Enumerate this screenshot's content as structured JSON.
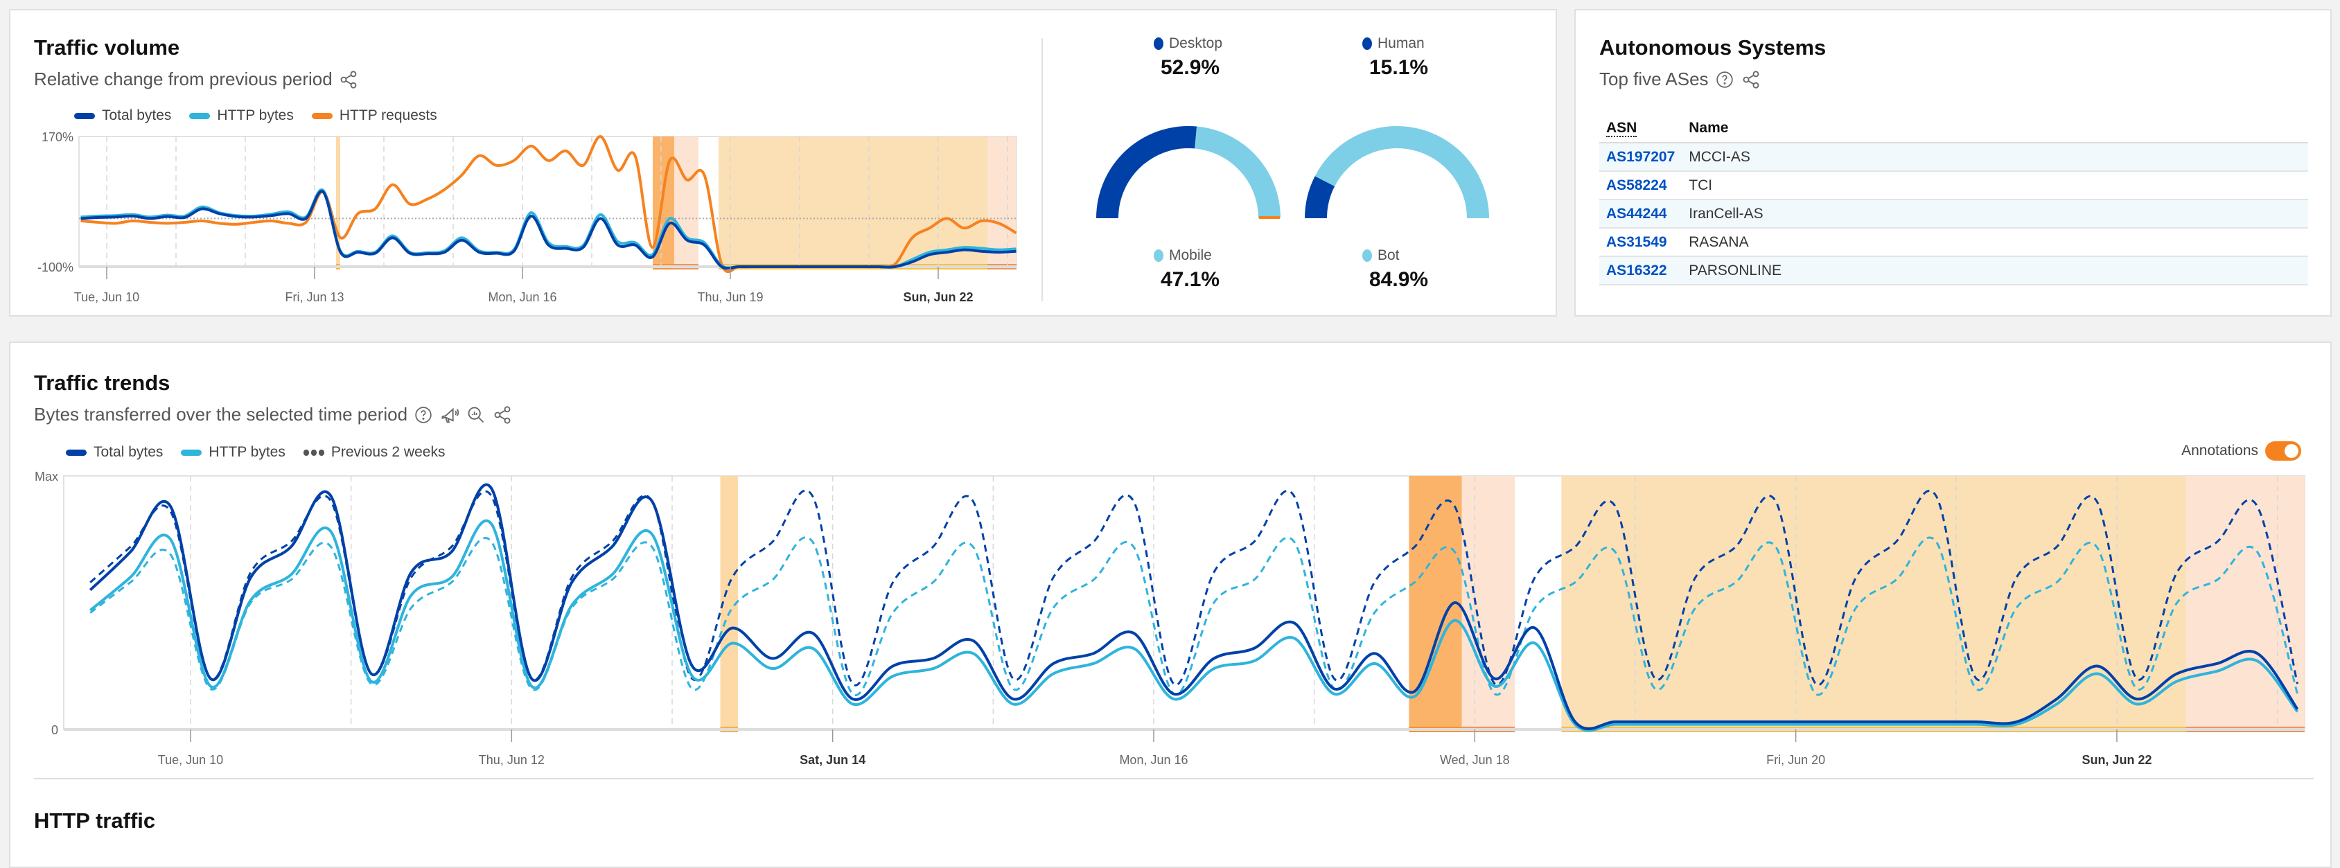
{
  "colors": {
    "total_bytes": "#0041a8",
    "http_bytes": "#2fb4dc",
    "http_requests": "#f6821f",
    "gauge_dark": "#0041a8",
    "gauge_light": "#7ccfe6",
    "accent": "#f6821f",
    "link": "#0051c3"
  },
  "traffic_volume": {
    "title": "Traffic volume",
    "subtitle": "Relative change from previous period",
    "share_icon": "share-icon",
    "legend": [
      "Total bytes",
      "HTTP bytes",
      "HTTP requests"
    ],
    "gauges": [
      {
        "top_label": "Desktop",
        "top_value": "52.9%",
        "bottom_label": "Mobile",
        "bottom_value": "47.1%",
        "fraction": 0.529
      },
      {
        "top_label": "Human",
        "top_value": "15.1%",
        "bottom_label": "Bot",
        "bottom_value": "84.9%",
        "fraction": 0.151
      }
    ]
  },
  "autonomous_systems": {
    "title": "Autonomous Systems",
    "subtitle": "Top five ASes",
    "columns": [
      "ASN",
      "Name"
    ],
    "rows": [
      {
        "asn": "AS197207",
        "name": "MCCI-AS"
      },
      {
        "asn": "AS58224",
        "name": "TCI"
      },
      {
        "asn": "AS44244",
        "name": "IranCell-AS"
      },
      {
        "asn": "AS31549",
        "name": "RASANA"
      },
      {
        "asn": "AS16322",
        "name": "PARSONLINE"
      }
    ]
  },
  "traffic_trends": {
    "title": "Traffic trends",
    "subtitle": "Bytes transferred over the selected time period",
    "legend": [
      "Total bytes",
      "HTTP bytes",
      "Previous 2 weeks"
    ],
    "annotations_label": "Annotations",
    "annotations_on": true
  },
  "http_traffic": {
    "title": "HTTP traffic"
  },
  "chart_data": [
    {
      "id": "volume",
      "type": "line",
      "title": "Traffic volume",
      "xlabel": "",
      "ylabel": "",
      "x_unit": "day of June",
      "xlim": [
        9.6,
        23.13
      ],
      "ylim": [
        -100,
        170
      ],
      "y_tick_labels": [
        "170%",
        "-100%"
      ],
      "baseline": 0,
      "x_ticks": [
        {
          "x": 10,
          "label": "Tue, Jun 10"
        },
        {
          "x": 13,
          "label": "Fri, Jun 13"
        },
        {
          "x": 16,
          "label": "Mon, Jun 16"
        },
        {
          "x": 19,
          "label": "Thu, Jun 19"
        },
        {
          "x": 22,
          "label": "Sun, Jun 22",
          "bold": true
        }
      ],
      "x_start": 9.625,
      "x_step": 0.25,
      "series": [
        {
          "name": "HTTP requests",
          "color": "#f6821f",
          "values": [
            -5,
            -8,
            -10,
            -5,
            -8,
            -10,
            -8,
            -5,
            -10,
            -12,
            -8,
            -5,
            -10,
            -8,
            55,
            -40,
            10,
            20,
            70,
            30,
            40,
            60,
            90,
            130,
            110,
            120,
            150,
            120,
            140,
            110,
            170,
            100,
            130,
            -60,
            120,
            80,
            90,
            -95,
            -100,
            -100,
            -100,
            -100,
            -100,
            -100,
            -100,
            -100,
            -100,
            -95,
            -40,
            -20,
            0,
            -20,
            -5,
            -10,
            -30
          ]
        },
        {
          "name": "HTTP bytes",
          "color": "#2fb4dc",
          "values": [
            3,
            5,
            6,
            8,
            3,
            7,
            5,
            24,
            12,
            6,
            5,
            9,
            14,
            3,
            58,
            -68,
            -68,
            -70,
            -36,
            -70,
            -71,
            -67,
            -40,
            -67,
            -70,
            -65,
            12,
            -50,
            -58,
            -56,
            8,
            -48,
            -50,
            -75,
            0,
            -40,
            -50,
            -98,
            -100,
            -100,
            -100,
            -100,
            -100,
            -100,
            -100,
            -100,
            -100,
            -100,
            -85,
            -70,
            -65,
            -60,
            -62,
            -65,
            -63
          ]
        },
        {
          "name": "Total bytes",
          "color": "#0041a8",
          "values": [
            0,
            2,
            3,
            5,
            0,
            4,
            2,
            20,
            10,
            4,
            3,
            6,
            10,
            0,
            55,
            -70,
            -70,
            -72,
            -40,
            -72,
            -73,
            -70,
            -45,
            -70,
            -72,
            -68,
            5,
            -55,
            -62,
            -60,
            0,
            -55,
            -55,
            -80,
            -10,
            -45,
            -55,
            -100,
            -100,
            -100,
            -100,
            -100,
            -100,
            -100,
            -100,
            -100,
            -100,
            -100,
            -90,
            -75,
            -70,
            -65,
            -68,
            -70,
            -68
          ]
        }
      ],
      "annotations": [
        {
          "from": 13.31,
          "to": 13.37,
          "color": "#fcd9a6",
          "marker": "#fbb040"
        },
        {
          "from": 17.88,
          "to": 18.19,
          "color": "#fbb36a",
          "marker": "#f79233"
        },
        {
          "from": 18.19,
          "to": 18.54,
          "color": "#fde3d2",
          "marker": "#f0955a"
        },
        {
          "from": 18.83,
          "to": 22.71,
          "color": "#fbe0b5",
          "marker": "#fbbf45"
        },
        {
          "from": 22.71,
          "to": 23.13,
          "color": "#fde3d2",
          "marker": "#f0955a"
        }
      ]
    },
    {
      "id": "trends",
      "type": "line",
      "title": "Traffic trends",
      "x_unit": "day of June",
      "xlim": [
        9.21,
        23.17
      ],
      "ylim": [
        0,
        100
      ],
      "y_tick_labels": [
        "Max",
        "0"
      ],
      "x_ticks": [
        {
          "x": 10,
          "label": "Tue, Jun 10"
        },
        {
          "x": 12,
          "label": "Thu, Jun 12"
        },
        {
          "x": 14,
          "label": "Sat, Jun 14",
          "bold": true
        },
        {
          "x": 16,
          "label": "Mon, Jun 16"
        },
        {
          "x": 18,
          "label": "Wed, Jun 18"
        },
        {
          "x": 20,
          "label": "Fri, Jun 20"
        },
        {
          "x": 22,
          "label": "Sun, Jun 22",
          "bold": true
        }
      ],
      "x_start": 9.375,
      "x_step": 0.25,
      "series": [
        {
          "name": "Previous 2 weeks (HTTP bytes)",
          "color": "#2fb4dc",
          "dashed": true,
          "values": [
            46,
            58,
            69,
            16,
            50,
            59,
            72,
            18,
            48,
            58,
            74,
            16,
            48,
            59,
            72,
            16,
            48,
            59,
            74,
            14,
            46,
            58,
            72,
            16,
            48,
            59,
            72,
            14,
            50,
            59,
            74,
            16,
            46,
            58,
            70,
            14,
            48,
            58,
            70,
            16,
            48,
            58,
            72,
            14,
            48,
            59,
            74,
            16,
            48,
            58,
            72,
            16,
            50,
            59,
            70,
            14
          ]
        },
        {
          "name": "Previous 2 weeks (Total bytes)",
          "color": "#0041a8",
          "dashed": true,
          "values": [
            58,
            72,
            86,
            20,
            62,
            74,
            90,
            22,
            60,
            72,
            92,
            20,
            60,
            74,
            90,
            20,
            60,
            74,
            92,
            18,
            58,
            72,
            90,
            20,
            60,
            74,
            90,
            18,
            62,
            74,
            92,
            20,
            58,
            72,
            88,
            18,
            60,
            72,
            88,
            20,
            60,
            72,
            90,
            18,
            60,
            74,
            92,
            20,
            60,
            72,
            90,
            20,
            62,
            74,
            88,
            18
          ]
        },
        {
          "name": "HTTP bytes",
          "color": "#2fb4dc",
          "values": [
            47,
            60,
            75,
            17,
            51,
            61,
            78,
            19,
            53,
            60,
            81,
            17,
            49,
            61,
            77,
            21,
            34,
            24,
            32,
            10,
            21,
            24,
            30,
            10,
            22,
            26,
            32,
            12,
            24,
            27,
            36,
            14,
            26,
            13,
            43,
            17,
            34,
            2,
            2,
            2,
            2,
            2,
            2,
            2,
            2,
            2,
            2,
            2,
            2,
            10,
            22,
            10,
            19,
            23,
            27,
            7
          ]
        },
        {
          "name": "Total bytes",
          "color": "#0041a8",
          "values": [
            55,
            70,
            88,
            20,
            60,
            72,
            92,
            22,
            62,
            70,
            95,
            20,
            58,
            72,
            90,
            25,
            40,
            28,
            38,
            12,
            25,
            28,
            35,
            12,
            26,
            30,
            38,
            14,
            28,
            32,
            42,
            16,
            30,
            15,
            50,
            20,
            40,
            3,
            3,
            3,
            3,
            3,
            3,
            3,
            3,
            3,
            3,
            3,
            3,
            12,
            25,
            12,
            22,
            26,
            30,
            8
          ]
        }
      ],
      "annotations": [
        {
          "from": 13.3,
          "to": 13.41,
          "color": "#fcd9a6",
          "marker": "#fbb040"
        },
        {
          "from": 17.59,
          "to": 17.92,
          "color": "#fbb36a",
          "marker": "#f79233"
        },
        {
          "from": 17.92,
          "to": 18.25,
          "color": "#fde3d2",
          "marker": "#f0955a"
        },
        {
          "from": 18.54,
          "to": 22.43,
          "color": "#fbe0b5",
          "marker": "#fbbf45"
        },
        {
          "from": 22.43,
          "to": 23.17,
          "color": "#fde3d2",
          "marker": "#f0955a"
        }
      ]
    }
  ]
}
